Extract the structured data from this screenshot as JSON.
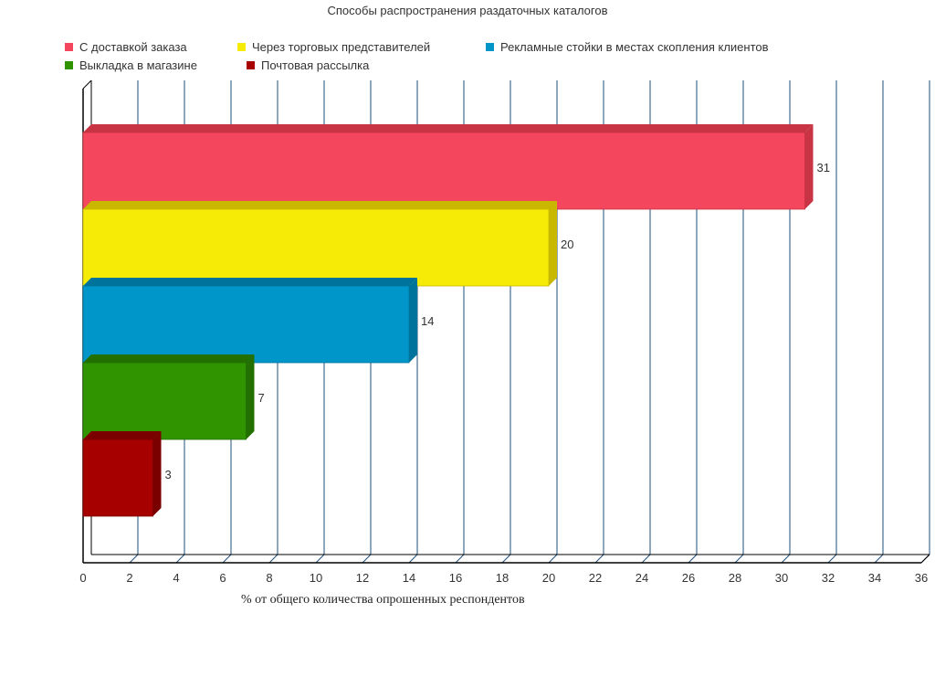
{
  "chart_data": {
    "type": "bar",
    "orientation": "horizontal",
    "title": "Способы распространения раздаточных каталогов",
    "xlabel": "% от общего количества опрошенных респондентов",
    "ylabel": "",
    "xlim": [
      0,
      36
    ],
    "x_ticks": [
      "0",
      "2",
      "4",
      "6",
      "8",
      "10",
      "12",
      "14",
      "16",
      "18",
      "20",
      "22",
      "24",
      "26",
      "28",
      "30",
      "32",
      "34",
      "36"
    ],
    "grid": "vertical",
    "legend_position": "top-left",
    "series": [
      {
        "name": "С доставкой заказа",
        "value": 31,
        "label": "31",
        "color": "#f4465c",
        "shade": "#c83444"
      },
      {
        "name": "Через торговых представителей",
        "value": 20,
        "label": "20",
        "color": "#f5eb07",
        "shade": "#c8b800"
      },
      {
        "name": "Рекламные стойки в местах скопления клиентов",
        "value": 14,
        "label": "14",
        "color": "#0096c9",
        "shade": "#00739c"
      },
      {
        "name": "Выкладка в магазине",
        "value": 7,
        "label": "7",
        "color": "#309400",
        "shade": "#237000"
      },
      {
        "name": "Почтовая рассылка",
        "value": 3,
        "label": "3",
        "color": "#a60000",
        "shade": "#7a0000"
      }
    ]
  }
}
